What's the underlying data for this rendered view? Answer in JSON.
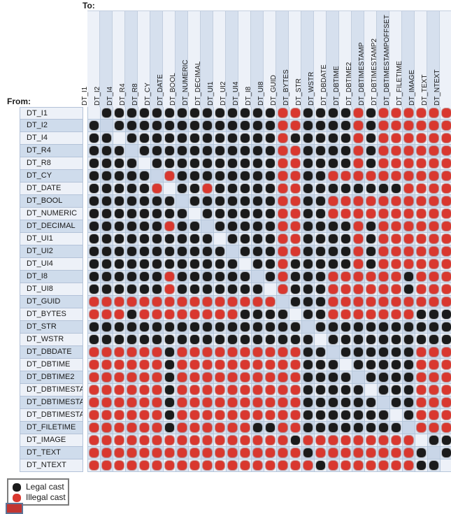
{
  "labels": {
    "to": "To:",
    "from": "From:"
  },
  "legend": {
    "items": [
      {
        "label": "Legal cast",
        "color": "#1b1b1b"
      },
      {
        "label": "Illegal cast",
        "color": "#d9382f"
      }
    ]
  },
  "colors": {
    "legal_dot": "#1b1b1b",
    "illegal_dot": "#d9382f",
    "cell_light": "#edf1f8",
    "cell_medium": "#dae3f0",
    "cell_dark": "#c9d6e8",
    "grid_line": "#b6c7db"
  },
  "chart_data": {
    "type": "heatmap",
    "xlabel": "To:",
    "ylabel": "From:",
    "legend_position": "bottom-left",
    "grid": true,
    "cell_codes": {
      "B": "Legal cast",
      "R": "Illegal cast",
      ".": "same type (blank)"
    },
    "categories": [
      "DT_I1",
      "DT_I2",
      "DT_I4",
      "DT_R4",
      "DT_R8",
      "DT_CY",
      "DT_DATE",
      "DT_BOOL",
      "DT_NUMERIC",
      "DT_DECIMAL",
      "DT_UI1",
      "DT_UI2",
      "DT_UI4",
      "DT_I8",
      "DT_UI8",
      "DT_GUID",
      "DT_BYTES",
      "DT_STR",
      "DT_WSTR",
      "DT_DBDATE",
      "DT_DBTIME",
      "DT_DBTIME2",
      "DT_DBTIMESTAMP",
      "DT_DBTIMESTAMP2",
      "DT_DBTIMESTAMPOFFSET",
      "DT_FILETIME",
      "DT_IMAGE",
      "DT_TEXT",
      "DT_NTEXT"
    ],
    "rows": [
      ".BBBBBBBBBBBBBBRRBBBBRBRRRRRR",
      "B.BBBBBBBBBBBBBRRBBBBRBRRRRRR",
      "BB.BBBBBBBBBBBBRBBBBBRBRRRRRR",
      "BBB.BBBBBBBBBBBRRBBBBRBRRRRRR",
      "BBBB.BBBBBBBBBBRRBBBBRBRRRRRR",
      "BBBBB.RBBBBBBBBRRBBRRRRRRRRRR",
      "BBBBBR.BBRBBBBBRRBBBBBBBBRRRR",
      "BBBBBBB.BBBBBBBRRBBRRRRRRRRRR",
      "BBBBBBBB.BBBBBBRRBBRRRRRRRRRR",
      "BBBBBBRBB.BBBBBRRBBBBRBRRRRRR",
      "BBBBBBBBBB.BBBBRRBBBBRBRRRRRR",
      "BBBBBBBBBBB.BBBRRBBBBRBRRRRRR",
      "BBBBBBBBBBBB.BBRBBBBBRBRRRRRR",
      "BBBBBBRBBBBBB.BRBBBRRRRRRBRRR",
      "BBBBBBRBBBBBBB.RBBBRRRRRRBRRR",
      "RRRRRRRRRRRRRRR.BBBRRRRRRRRRR",
      "RRRBRRRRRRRRBBBB.BBRRRRRRRBBB",
      "BBBBBBBBBBBBBBBBB.BBBBBBBBBBB",
      "BBBBBBBBBBBBBBBBBB.BBBBBBBBBB",
      "RRRRRRBRRRRRRRRRRBB.BBBBBBRRR",
      "RRRRRRBRRRRRRRRRRBBB.BBBBBRRR",
      "RRRRRRBRRRRRRRRRRBBBB.BBBBRRR",
      "RRRRRRBRRRRRRRRRRBBBBB.BBBRRR",
      "RRRRRRBRRRRRRRRRRBBBBBB.BBRRR",
      "RRRRRRBRRRRRRRRRRBBBBBBB.BRRR",
      "RRRRRRBRRRRRRBBRRBBBBBBBB.RRR",
      "RRRRRRRRRRRRRRRRBRRRRRRRRR.BB",
      "RRRRRRRRRRRRRRRRRBRRRRRRRRB.B",
      "RRRRRRRRRRRRRRRRRRBRRRRRRRBB."
    ]
  }
}
